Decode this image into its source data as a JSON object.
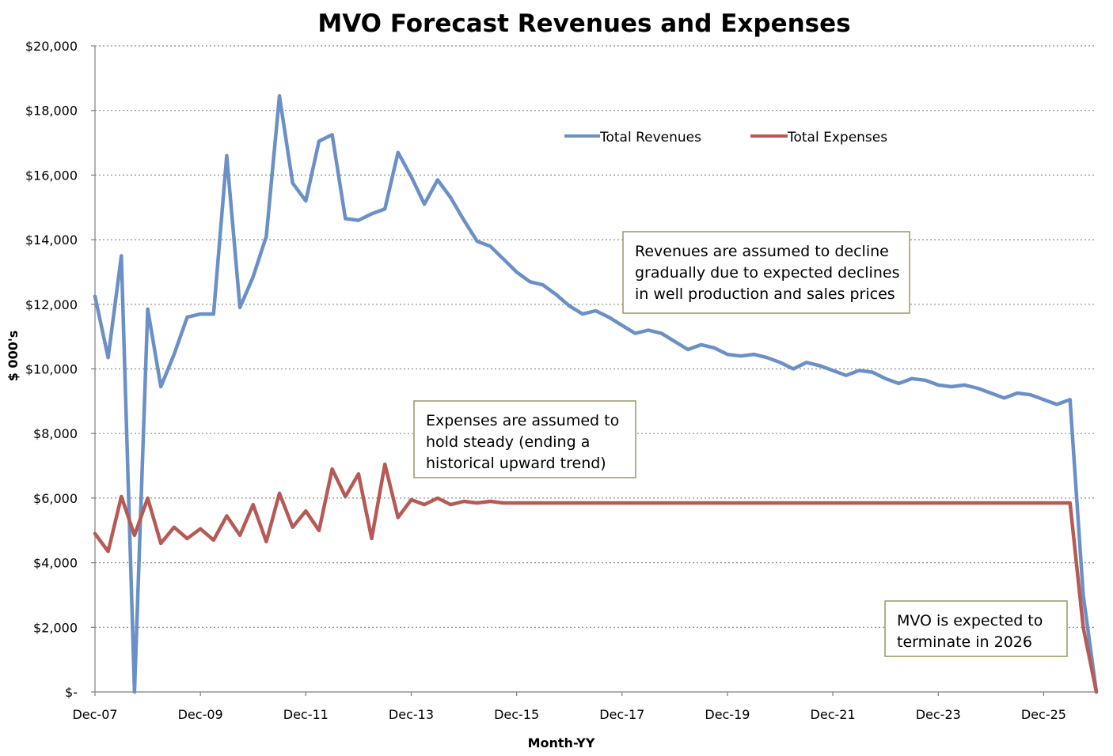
{
  "chart_data": {
    "type": "line",
    "title": "MVO Forecast Revenues and Expenses",
    "xlabel": "Month-YY",
    "ylabel": "$ 000's",
    "x_start_label": "Dec-07",
    "x_tick_labels": [
      "Dec-07",
      "Dec-09",
      "Dec-11",
      "Dec-13",
      "Dec-15",
      "Dec-17",
      "Dec-19",
      "Dec-21",
      "Dec-23",
      "Dec-25"
    ],
    "y_tick_labels": [
      "$-",
      "$2,000",
      "$4,000",
      "$6,000",
      "$8,000",
      "$10,000",
      "$12,000",
      "$14,000",
      "$16,000",
      "$18,000",
      "$20,000"
    ],
    "ylim": [
      0,
      20000
    ],
    "y_step": 2000,
    "x_step_months": 3,
    "grid": true,
    "legend_position": "top-right",
    "series": [
      {
        "name": "Total Revenues",
        "color": "#6a90c6",
        "values": [
          12250,
          10350,
          13500,
          0,
          11850,
          9450,
          10450,
          11600,
          11700,
          11700,
          16600,
          11900,
          12850,
          14100,
          18450,
          15750,
          15200,
          17050,
          17250,
          14650,
          14600,
          14800,
          14950,
          16700,
          15950,
          15100,
          15850,
          15300,
          14600,
          13950,
          13800,
          13400,
          13000,
          12700,
          12600,
          12300,
          11950,
          11700,
          11800,
          11600,
          11350,
          11100,
          11200,
          11100,
          10850,
          10600,
          10750,
          10650,
          10450,
          10400,
          10450,
          10350,
          10200,
          10000,
          10200,
          10100,
          9950,
          9800,
          9950,
          9900,
          9700,
          9550,
          9700,
          9650,
          9500,
          9450,
          9500,
          9400,
          9250,
          9100,
          9250,
          9200,
          9050,
          8900,
          9050,
          3000,
          0
        ]
      },
      {
        "name": "Total Expenses",
        "color": "#b55a55",
        "values": [
          4900,
          4350,
          6050,
          4850,
          6000,
          4600,
          5100,
          4750,
          5050,
          4700,
          5450,
          4850,
          5800,
          4650,
          6150,
          5100,
          5600,
          5000,
          6900,
          6050,
          6750,
          4750,
          7050,
          5400,
          5950,
          5800,
          6000,
          5800,
          5900,
          5850,
          5900,
          5850,
          5850,
          5850,
          5850,
          5850,
          5850,
          5850,
          5850,
          5850,
          5850,
          5850,
          5850,
          5850,
          5850,
          5850,
          5850,
          5850,
          5850,
          5850,
          5850,
          5850,
          5850,
          5850,
          5850,
          5850,
          5850,
          5850,
          5850,
          5850,
          5850,
          5850,
          5850,
          5850,
          5850,
          5850,
          5850,
          5850,
          5850,
          5850,
          5850,
          5850,
          5850,
          5850,
          5850,
          2000,
          0
        ]
      }
    ],
    "annotations": [
      {
        "lines": [
          "Revenues are assumed to decline",
          "gradually due to expected declines",
          "in well production and sales prices"
        ]
      },
      {
        "lines": [
          "Expenses are assumed to",
          "hold steady (ending a",
          "historical upward trend)"
        ]
      },
      {
        "lines": [
          "MVO is expected to",
          "terminate in 2026"
        ]
      }
    ]
  }
}
